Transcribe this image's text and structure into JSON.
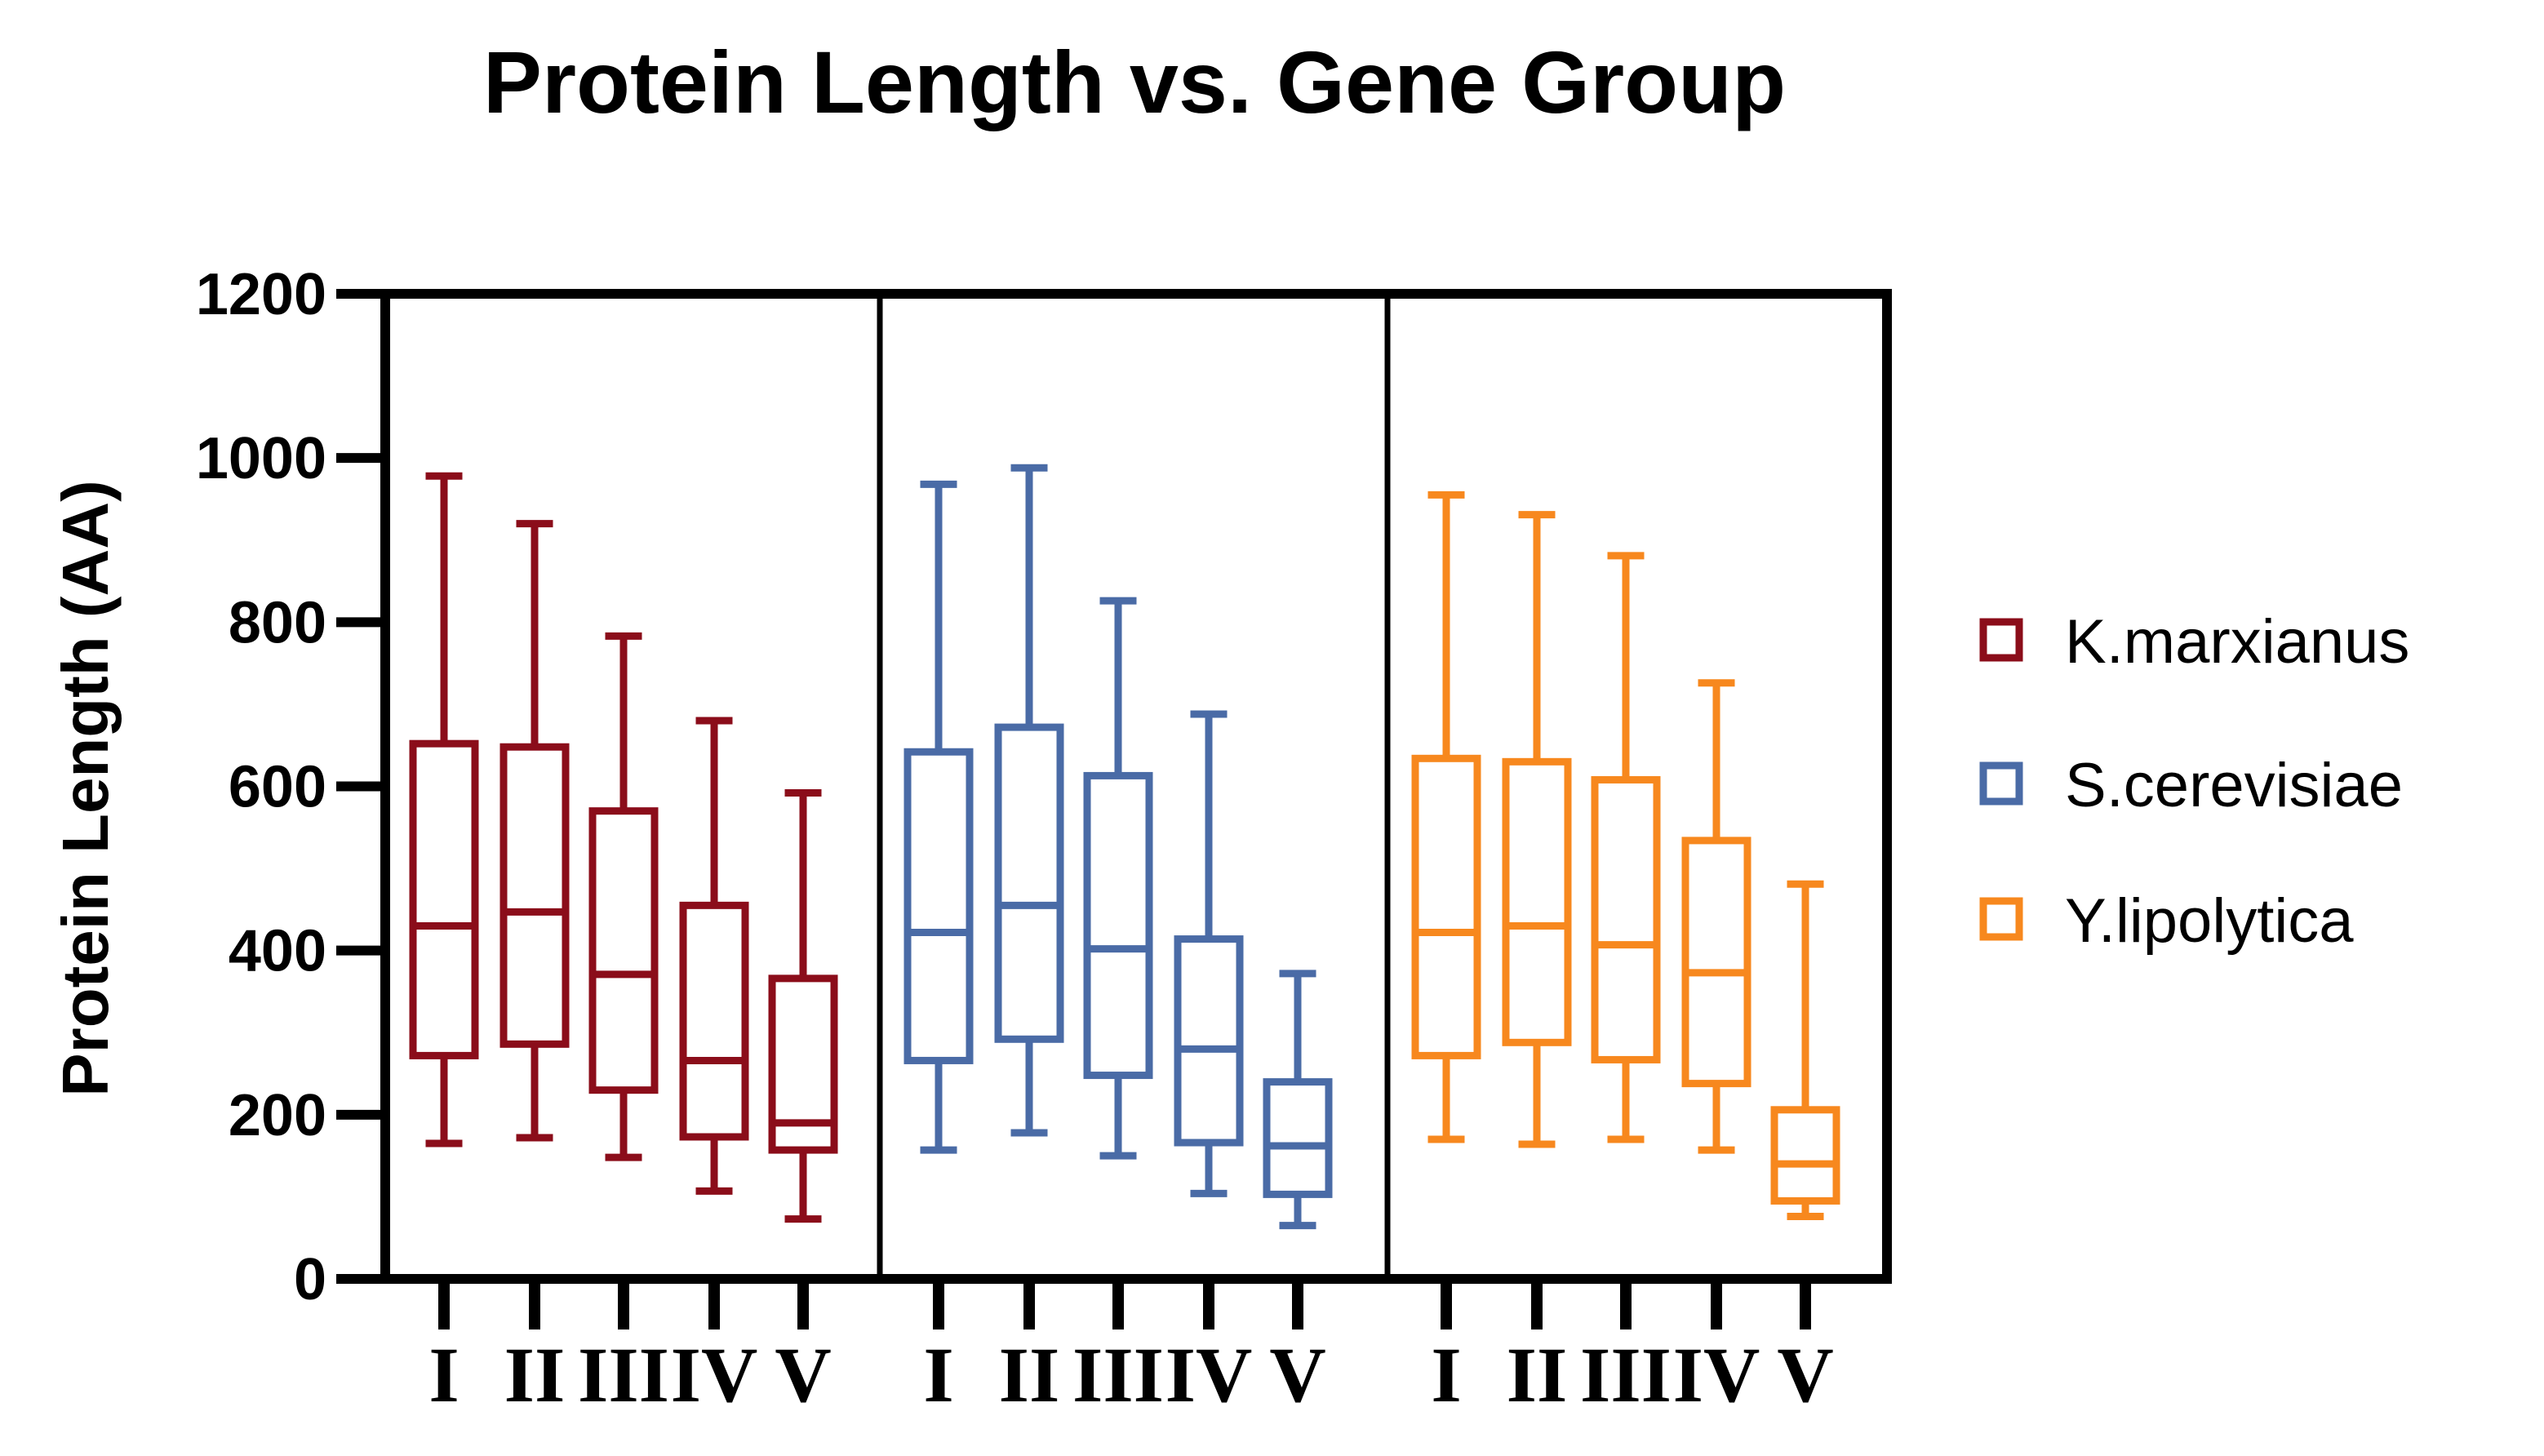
{
  "chart_data": {
    "type": "box",
    "title": "Protein Length vs. Gene Group",
    "xlabel": "",
    "ylabel": "Protein Length (AA)",
    "ylim": [
      0,
      1200
    ],
    "yticks": [
      "0",
      "200",
      "400",
      "600",
      "800",
      "1000",
      "1200"
    ],
    "categories": [
      "I",
      "II",
      "III",
      "IV",
      "V"
    ],
    "legend_position": "right",
    "series": [
      {
        "name": "K.marxianus",
        "color": "#8b0d1a",
        "boxes": [
          {
            "group": "I",
            "min": 165,
            "q1": 272,
            "median": 430,
            "q3": 652,
            "max": 978
          },
          {
            "group": "II",
            "min": 172,
            "q1": 286,
            "median": 447,
            "q3": 648,
            "max": 920
          },
          {
            "group": "III",
            "min": 148,
            "q1": 230,
            "median": 371,
            "q3": 570,
            "max": 783
          },
          {
            "group": "IV",
            "min": 107,
            "q1": 173,
            "median": 266,
            "q3": 455,
            "max": 680
          },
          {
            "group": "V",
            "min": 73,
            "q1": 157,
            "median": 190,
            "q3": 366,
            "max": 592
          }
        ]
      },
      {
        "name": "S.cerevisiae",
        "color": "#4a6ba6",
        "boxes": [
          {
            "group": "I",
            "min": 157,
            "q1": 266,
            "median": 422,
            "q3": 642,
            "max": 968
          },
          {
            "group": "II",
            "min": 178,
            "q1": 292,
            "median": 455,
            "q3": 672,
            "max": 988
          },
          {
            "group": "III",
            "min": 150,
            "q1": 248,
            "median": 402,
            "q3": 613,
            "max": 826
          },
          {
            "group": "IV",
            "min": 104,
            "q1": 166,
            "median": 280,
            "q3": 414,
            "max": 688
          },
          {
            "group": "V",
            "min": 65,
            "q1": 103,
            "median": 162,
            "q3": 240,
            "max": 372
          }
        ]
      },
      {
        "name": "Y.lipolytica",
        "color": "#f7881e",
        "boxes": [
          {
            "group": "I",
            "min": 170,
            "q1": 272,
            "median": 422,
            "q3": 634,
            "max": 955
          },
          {
            "group": "II",
            "min": 164,
            "q1": 288,
            "median": 430,
            "q3": 630,
            "max": 931
          },
          {
            "group": "III",
            "min": 170,
            "q1": 267,
            "median": 407,
            "q3": 608,
            "max": 881
          },
          {
            "group": "IV",
            "min": 157,
            "q1": 238,
            "median": 373,
            "q3": 534,
            "max": 726
          },
          {
            "group": "V",
            "min": 76,
            "q1": 95,
            "median": 140,
            "q3": 206,
            "max": 481
          }
        ]
      }
    ]
  }
}
